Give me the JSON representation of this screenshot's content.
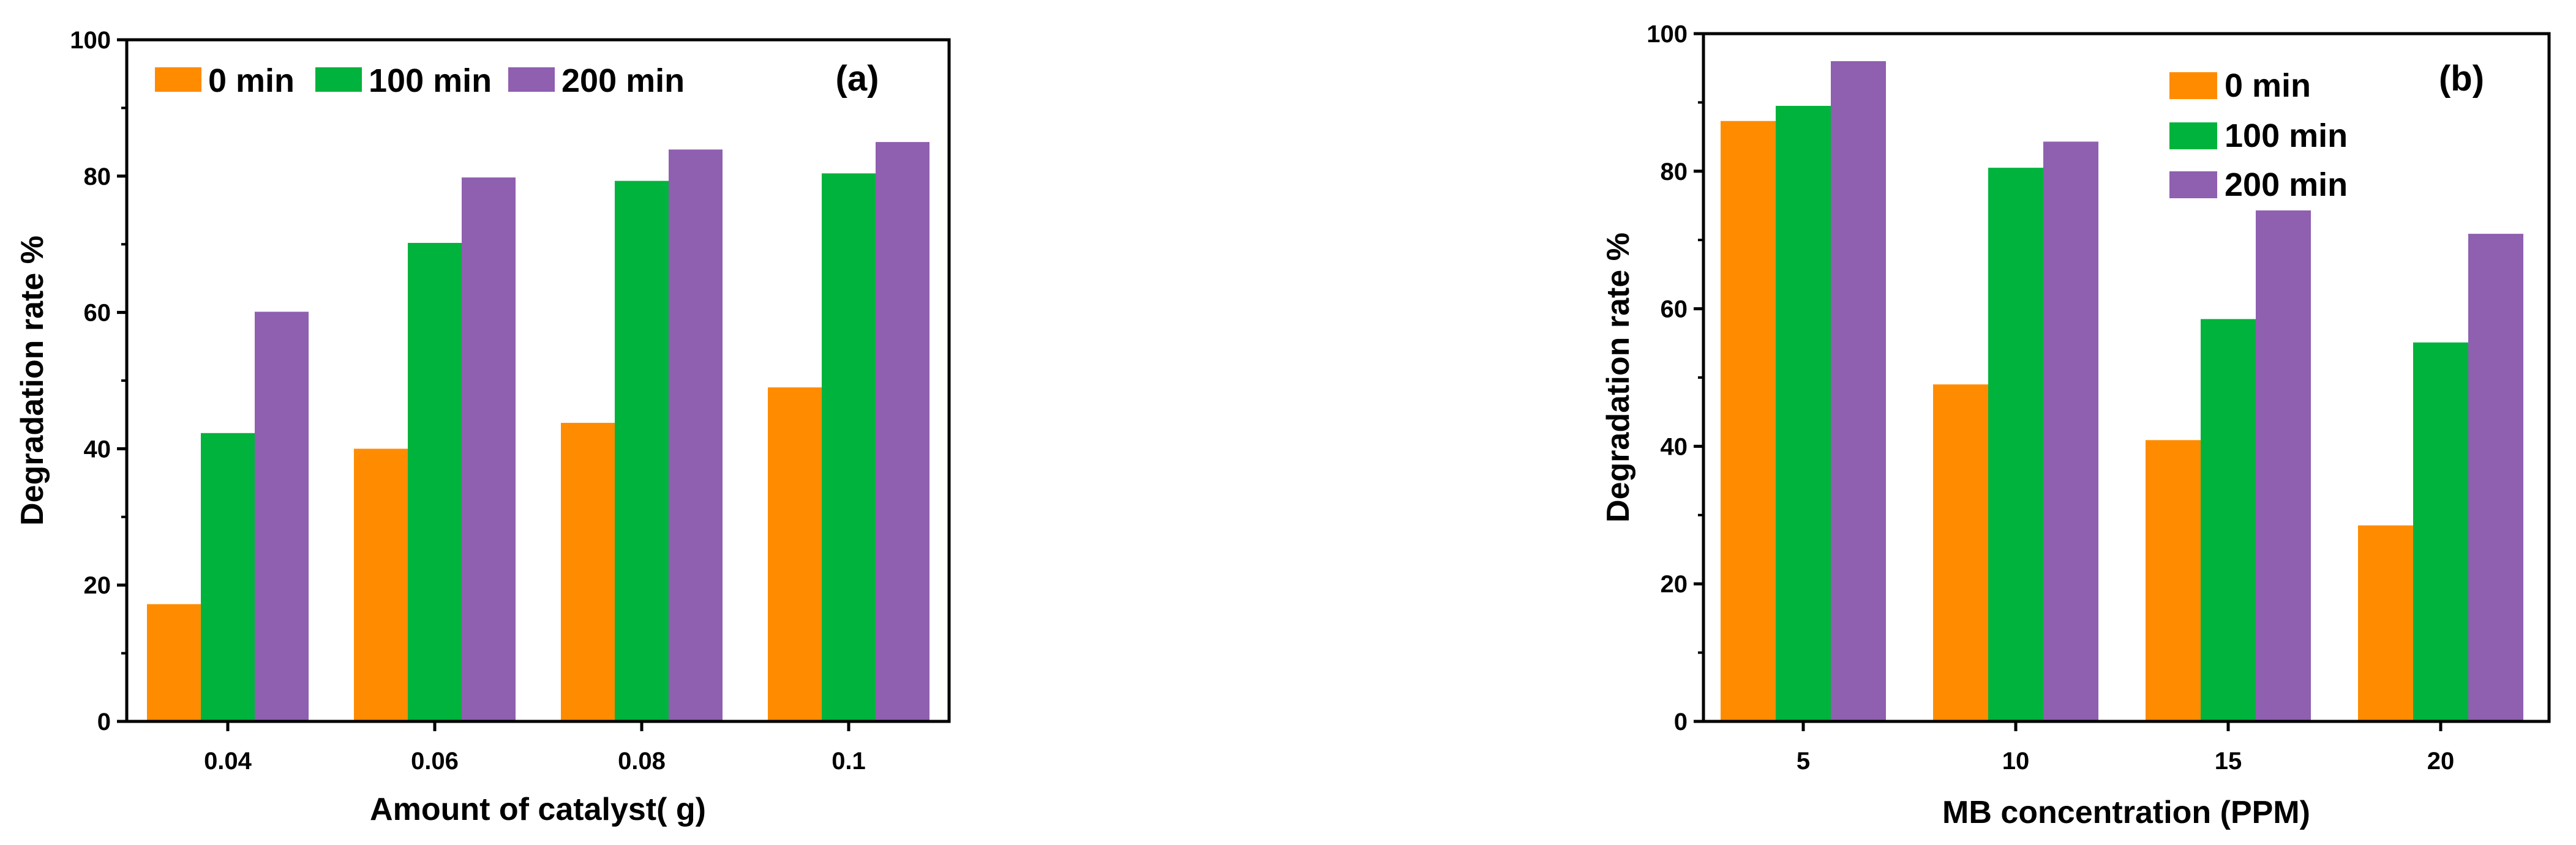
{
  "chart_data": [
    {
      "type": "bar",
      "panel_label": "(a)",
      "xlabel": "Amount of catalyst( g)",
      "ylabel": "Degradation rate %",
      "categories": [
        "0.04",
        "0.06",
        "0.08",
        "0.1"
      ],
      "ylim": [
        0,
        100
      ],
      "yticks": [
        0,
        20,
        40,
        60,
        80,
        100
      ],
      "ytick_labels": [
        "0",
        "20",
        "40",
        "60",
        "80",
        "100"
      ],
      "grid": false,
      "legend": {
        "placement": "top-left",
        "orientation": "horizontal"
      },
      "series": [
        {
          "name": "0 min",
          "color": "#FF8C00",
          "values": [
            17.2,
            40.0,
            43.8,
            49.0
          ]
        },
        {
          "name": "100 min",
          "color": "#00B33C",
          "values": [
            42.3,
            70.2,
            79.3,
            80.4
          ]
        },
        {
          "name": "200 min",
          "color": "#8F5FB0",
          "values": [
            60.1,
            79.8,
            83.9,
            85.0
          ]
        }
      ]
    },
    {
      "type": "bar",
      "panel_label": "(b)",
      "xlabel": "MB concentration (PPM)",
      "ylabel": "Degradation rate %",
      "categories": [
        "5",
        "10",
        "15",
        "20"
      ],
      "ylim": [
        0,
        100
      ],
      "yticks": [
        0,
        20,
        40,
        60,
        80,
        100
      ],
      "ytick_labels": [
        "0",
        "20",
        "40",
        "60",
        "80",
        "100"
      ],
      "grid": false,
      "legend": {
        "placement": "top-right",
        "orientation": "vertical"
      },
      "series": [
        {
          "name": "0 min",
          "color": "#FF8C00",
          "values": [
            87.3,
            49.0,
            40.9,
            28.5
          ]
        },
        {
          "name": "100 min",
          "color": "#00B33C",
          "values": [
            89.5,
            80.5,
            58.5,
            55.1
          ]
        },
        {
          "name": "200 min",
          "color": "#8F5FB0",
          "values": [
            96.0,
            84.3,
            74.3,
            70.9
          ]
        }
      ]
    }
  ]
}
